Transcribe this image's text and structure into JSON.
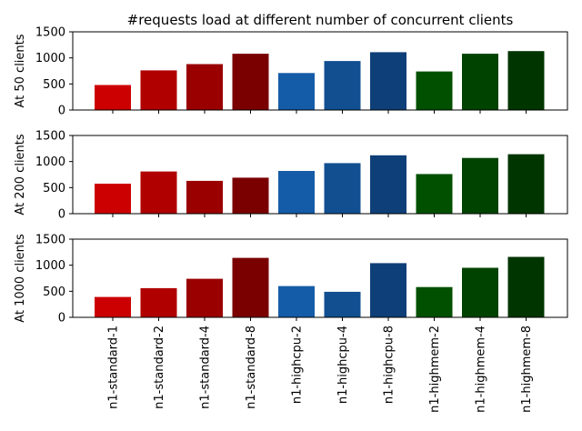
{
  "chart_data": [
    {
      "type": "bar",
      "title": "#requests load at different number of concurrent clients",
      "ylabel": "At 50 clients",
      "ylim": [
        0,
        1500
      ],
      "yticks": [
        0,
        500,
        1000,
        1500
      ],
      "categories": [
        "n1-standard-1",
        "n1-standard-2",
        "n1-standard-4",
        "n1-standard-8",
        "n1-highcpu-2",
        "n1-highcpu-4",
        "n1-highcpu-8",
        "n1-highmem-2",
        "n1-highmem-4",
        "n1-highmem-8"
      ],
      "values": [
        480,
        760,
        880,
        1080,
        710,
        940,
        1110,
        740,
        1080,
        1130
      ]
    },
    {
      "type": "bar",
      "title": "",
      "ylabel": "At 200 clients",
      "ylim": [
        0,
        1500
      ],
      "yticks": [
        0,
        500,
        1000,
        1500
      ],
      "categories": [
        "n1-standard-1",
        "n1-standard-2",
        "n1-standard-4",
        "n1-standard-8",
        "n1-highcpu-2",
        "n1-highcpu-4",
        "n1-highcpu-8",
        "n1-highmem-2",
        "n1-highmem-4",
        "n1-highmem-8"
      ],
      "values": [
        575,
        810,
        630,
        690,
        820,
        970,
        1120,
        760,
        1070,
        1140
      ]
    },
    {
      "type": "bar",
      "title": "",
      "ylabel": "At 1000 clients",
      "ylim": [
        0,
        1500
      ],
      "yticks": [
        0,
        500,
        1000,
        1500
      ],
      "categories": [
        "n1-standard-1",
        "n1-standard-2",
        "n1-standard-4",
        "n1-standard-8",
        "n1-highcpu-2",
        "n1-highcpu-4",
        "n1-highcpu-8",
        "n1-highmem-2",
        "n1-highmem-4",
        "n1-highmem-8"
      ],
      "values": [
        390,
        560,
        740,
        1140,
        600,
        490,
        1040,
        580,
        950,
        1160
      ]
    }
  ],
  "colors": [
    "#cc0000",
    "#b00000",
    "#9a0000",
    "#7a0000",
    "#155ca8",
    "#114f91",
    "#0e3f78",
    "#005000",
    "#004300",
    "#003500"
  ]
}
